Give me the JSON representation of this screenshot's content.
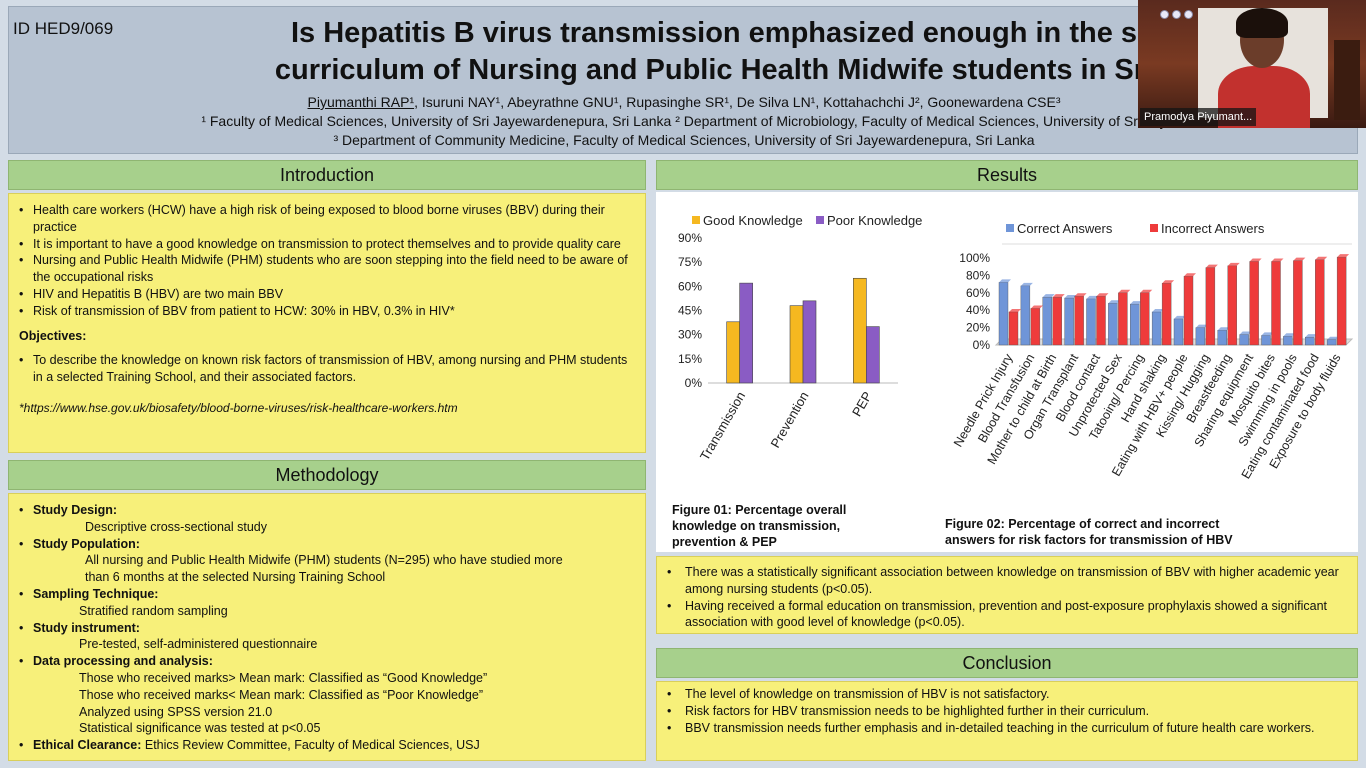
{
  "header": {
    "id": "ID HED9/069",
    "title_line1": "Is Hepatitis B virus transmission emphasized enough in the s",
    "title_line2": "curriculum of Nursing and Public Health Midwife students in Sri",
    "first_author": "Piyumanthi RAP¹",
    "other_authors": ", Isuruni NAY¹, Abeyrathne GNU¹, Rupasinghe SR¹, De Silva LN¹, Kottahachchi J², Goonewardena CSE³",
    "affil1": "¹ Faculty of Medical Sciences, University of Sri Jayewardenepura, Sri Lanka  ² Department of Microbiology, Faculty of Medical Sciences, University of Sri Jay",
    "affil2": "³ Department of Community Medicine, Faculty of Medical Sciences, University of Sri Jayewardenepura, Sri Lanka"
  },
  "video": {
    "name": "Pramodya Piyumant..."
  },
  "introduction": {
    "heading": "Introduction",
    "bullets": [
      "Health care workers (HCW) have a high risk of being exposed to blood borne viruses (BBV) during their practice",
      "It is important to have a good knowledge on transmission to protect themselves and to provide quality care",
      "Nursing and Public Health Midwife (PHM) students who are soon stepping into the field need to be aware of the occupational risks",
      "HIV and Hepatitis B (HBV) are two main BBV",
      "Risk of transmission of BBV from patient to HCW: 30% in HBV, 0.3% in HIV*"
    ],
    "objectives_label": "Objectives:",
    "objective": "To describe the knowledge on known risk factors of transmission of HBV, among nursing and PHM students in a selected Training School, and their associated factors.",
    "footnote": "*https://www.hse.gov.uk/biosafety/blood-borne-viruses/risk-healthcare-workers.htm"
  },
  "methodology": {
    "heading": "Methodology",
    "design_label": "Study Design:",
    "design": "Descriptive cross-sectional study",
    "population_label": "Study Population:",
    "population_1": "All nursing and Public Health Midwife (PHM) students (N=295) who have studied more",
    "population_2": "than 6 months at the selected Nursing Training School",
    "sampling_label": "Sampling Technique:",
    "sampling": "Stratified random sampling",
    "instrument_label": "Study instrument:",
    "instrument": "Pre-tested, self-administered questionnaire",
    "analysis_label": "Data processing and analysis:",
    "analysis_1": "Those who received marks> Mean mark: Classified as “Good Knowledge”",
    "analysis_2": "Those who received marks< Mean mark: Classified as “Poor Knowledge”",
    "analysis_3": "Analyzed using SPSS version 21.0",
    "analysis_4": "Statistical significance was tested at p<0.05",
    "ethics_label": "Ethical Clearance:",
    "ethics": " Ethics Review Committee, Faculty of Medical Sciences, USJ"
  },
  "results": {
    "heading": "Results",
    "fig1_caption_1": "Figure 01: Percentage overall",
    "fig1_caption_2": "knowledge on transmission,",
    "fig1_caption_3": "prevention & PEP",
    "fig2_caption_1": "Figure 02: Percentage of correct and incorrect",
    "fig2_caption_2": "answers for risk factors for transmission of HBV",
    "bullets": [
      "There was a statistically significant association between knowledge on transmission of BBV with higher academic year among nursing students (p<0.05).",
      "Having received a formal education on transmission, prevention and post-exposure prophylaxis showed a significant association with good level of knowledge (p<0.05)."
    ]
  },
  "conclusion": {
    "heading": "Conclusion",
    "bullets": [
      "The level of knowledge on transmission of HBV is not satisfactory.",
      "Risk factors for HBV transmission needs to be highlighted further in their curriculum.",
      "BBV transmission needs further emphasis and in-detailed teaching in the curriculum of future health care workers."
    ]
  },
  "chart_data": [
    {
      "type": "bar",
      "categories": [
        "Transmission",
        "Prevention",
        "PEP"
      ],
      "series": [
        {
          "name": "Good Knowledge",
          "values": [
            38,
            48,
            65
          ],
          "color": "#f5b820"
        },
        {
          "name": "Poor Knowledge",
          "values": [
            62,
            51,
            35
          ],
          "color": "#8a5cc4"
        }
      ],
      "yticks": [
        "0%",
        "15%",
        "30%",
        "45%",
        "60%",
        "75%",
        "90%"
      ],
      "ylim": [
        0,
        90
      ],
      "legend": "top"
    },
    {
      "type": "bar",
      "categories": [
        "Needle Prick Injury",
        "Blood Transfusion",
        "Mother to child at Birth",
        "Organ Transplant",
        "Blood contact",
        "Unprotected Sex",
        "Tatooing/ Percing",
        "Hand shaking",
        "Eating with HBV+ people",
        "Kissing/ Hugging",
        "Breastfeeding",
        "Sharing equipment",
        "Mosquito bites",
        "Swimming in pools",
        "Eating contaminated food",
        "Exposure to body fluids"
      ],
      "series": [
        {
          "name": "Correct Answers",
          "values": [
            72,
            68,
            55,
            54,
            53,
            48,
            47,
            38,
            30,
            20,
            17,
            12,
            11,
            10,
            9,
            6
          ],
          "color": "#6f95d8"
        },
        {
          "name": "Incorrect Answers",
          "values": [
            38,
            42,
            55,
            56,
            56,
            60,
            60,
            71,
            79,
            89,
            91,
            96,
            96,
            97,
            98,
            101
          ],
          "color": "#ee3b3b"
        }
      ],
      "yticks": [
        "0%",
        "20%",
        "40%",
        "60%",
        "80%",
        "100%"
      ],
      "ylim": [
        0,
        100
      ],
      "legend": "top"
    }
  ]
}
